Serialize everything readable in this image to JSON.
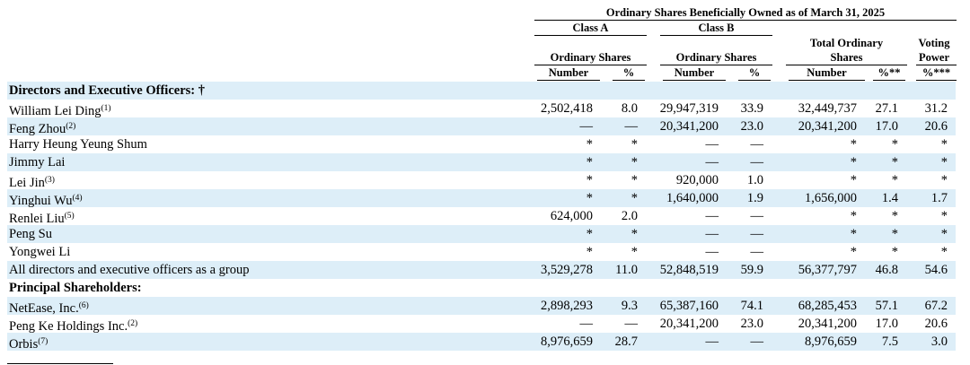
{
  "header": {
    "top": "Ordinary Shares Beneficially Owned as of March 31, 2025",
    "class_a": "Class A",
    "class_b": "Class B",
    "ord_shares_a": "Ordinary Shares",
    "ord_shares_b": "Ordinary Shares",
    "total_line1": "Total Ordinary",
    "total_line2": "Shares",
    "voting_line1": "Voting",
    "voting_line2": "Power",
    "number_a": "Number",
    "pct_a": "%",
    "number_b": "Number",
    "pct_b": "%",
    "number_t": "Number",
    "pct_t": "%**",
    "pct_v": "%***"
  },
  "rows": [
    {
      "label": "Directors and Executive Officers: †",
      "sup": "",
      "section": true,
      "values": [
        "",
        "",
        "",
        "",
        "",
        "",
        ""
      ]
    },
    {
      "label": "William Lei Ding",
      "sup": "(1)",
      "section": false,
      "values": [
        "2,502,418",
        "8.0",
        "29,947,319",
        "33.9",
        "32,449,737",
        "27.1",
        "31.2"
      ]
    },
    {
      "label": "Feng Zhou",
      "sup": "(2)",
      "section": false,
      "values": [
        "—",
        "—",
        "20,341,200",
        "23.0",
        "20,341,200",
        "17.0",
        "20.6"
      ]
    },
    {
      "label": "Harry Heung Yeung Shum",
      "sup": "",
      "section": false,
      "values": [
        "*",
        "*",
        "—",
        "—",
        "*",
        "*",
        "*"
      ]
    },
    {
      "label": "Jimmy Lai",
      "sup": "",
      "section": false,
      "values": [
        "*",
        "*",
        "—",
        "—",
        "*",
        "*",
        "*"
      ]
    },
    {
      "label": "Lei Jin",
      "sup": "(3)",
      "section": false,
      "values": [
        "*",
        "*",
        "920,000",
        "1.0",
        "*",
        "*",
        "*"
      ]
    },
    {
      "label": "Yinghui Wu",
      "sup": "(4)",
      "section": false,
      "values": [
        "*",
        "*",
        "1,640,000",
        "1.9",
        "1,656,000",
        "1.4",
        "1.7"
      ]
    },
    {
      "label": "Renlei Liu",
      "sup": "(5)",
      "section": false,
      "values": [
        "624,000",
        "2.0",
        "—",
        "—",
        "*",
        "*",
        "*"
      ]
    },
    {
      "label": "Peng Su",
      "sup": "",
      "section": false,
      "values": [
        "*",
        "*",
        "—",
        "—",
        "*",
        "*",
        "*"
      ]
    },
    {
      "label": "Yongwei Li",
      "sup": "",
      "section": false,
      "values": [
        "*",
        "*",
        "—",
        "—",
        "*",
        "*",
        "*"
      ]
    },
    {
      "label": "All directors and executive officers as a group",
      "sup": "",
      "section": false,
      "values": [
        "3,529,278",
        "11.0",
        "52,848,519",
        "59.9",
        "56,377,797",
        "46.8",
        "54.6"
      ]
    },
    {
      "label": "Principal Shareholders:",
      "sup": "",
      "section": true,
      "values": [
        "",
        "",
        "",
        "",
        "",
        "",
        ""
      ]
    },
    {
      "label": "NetEase, Inc.",
      "sup": "(6)",
      "section": false,
      "values": [
        "2,898,293",
        "9.3",
        "65,387,160",
        "74.1",
        "68,285,453",
        "57.1",
        "67.2"
      ]
    },
    {
      "label": "Peng Ke Holdings Inc.",
      "sup": "(2)",
      "section": false,
      "values": [
        "—",
        "—",
        "20,341,200",
        "23.0",
        "20,341,200",
        "17.0",
        "20.6"
      ]
    },
    {
      "label": "Orbis",
      "sup": "(7)",
      "section": false,
      "values": [
        "8,976,659",
        "28.7",
        "—",
        "—",
        "8,976,659",
        "7.5",
        "3.0"
      ]
    }
  ]
}
